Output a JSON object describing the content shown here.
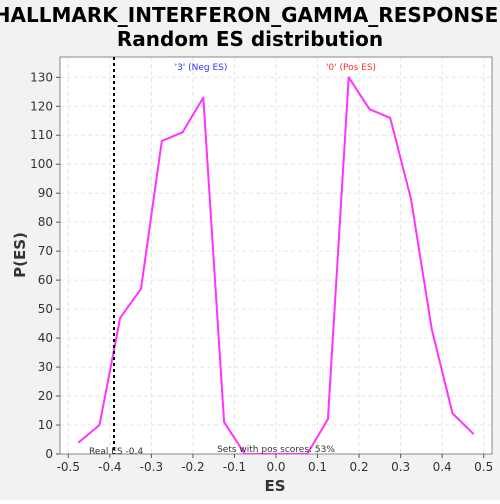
{
  "chart_data": {
    "type": "line",
    "title_lines": [
      "HALLMARK_INTERFERON_GAMMA_RESPONSE:",
      "Random ES distribution"
    ],
    "xlabel": "ES",
    "ylabel": "P(ES)",
    "xlim": [
      -0.52,
      0.52
    ],
    "ylim": [
      0,
      137
    ],
    "x_ticks": [
      "-0.5",
      "-0.4",
      "-0.3",
      "-0.2",
      "-0.1",
      "0.0",
      "0.1",
      "0.2",
      "0.3",
      "0.4",
      "0.5"
    ],
    "y_ticks": [
      "0",
      "10",
      "20",
      "30",
      "40",
      "50",
      "60",
      "70",
      "80",
      "90",
      "100",
      "110",
      "120",
      "130"
    ],
    "grid": true,
    "series": [
      {
        "color": "#ff33ff",
        "x": [
          -0.475,
          -0.425,
          -0.375,
          -0.325,
          -0.275,
          -0.225,
          -0.175,
          -0.125,
          -0.075,
          -0.025,
          0.025,
          0.075,
          0.125,
          0.175,
          0.225,
          0.275,
          0.325,
          0.375,
          0.425,
          0.475
        ],
        "y": [
          4,
          10,
          47,
          57,
          108,
          111,
          123,
          11,
          0,
          0,
          0,
          0,
          12,
          130,
          119,
          116,
          88,
          43,
          14,
          7
        ]
      }
    ],
    "real_es": -0.39,
    "annotations": {
      "neg_label": "'3' (Neg ES)",
      "pos_label": "'0' (Pos ES)",
      "real_es_label": "Real ES -0.4",
      "pos_scores_label": "Sets with pos scores: 53%"
    },
    "colors": {
      "background": "#f2f2f2",
      "plot_background": "#ffffff",
      "grid": "#e6e6e6",
      "neg_label": "#3333ff",
      "pos_label": "#ff3333",
      "real_es_line": "#000000"
    }
  }
}
